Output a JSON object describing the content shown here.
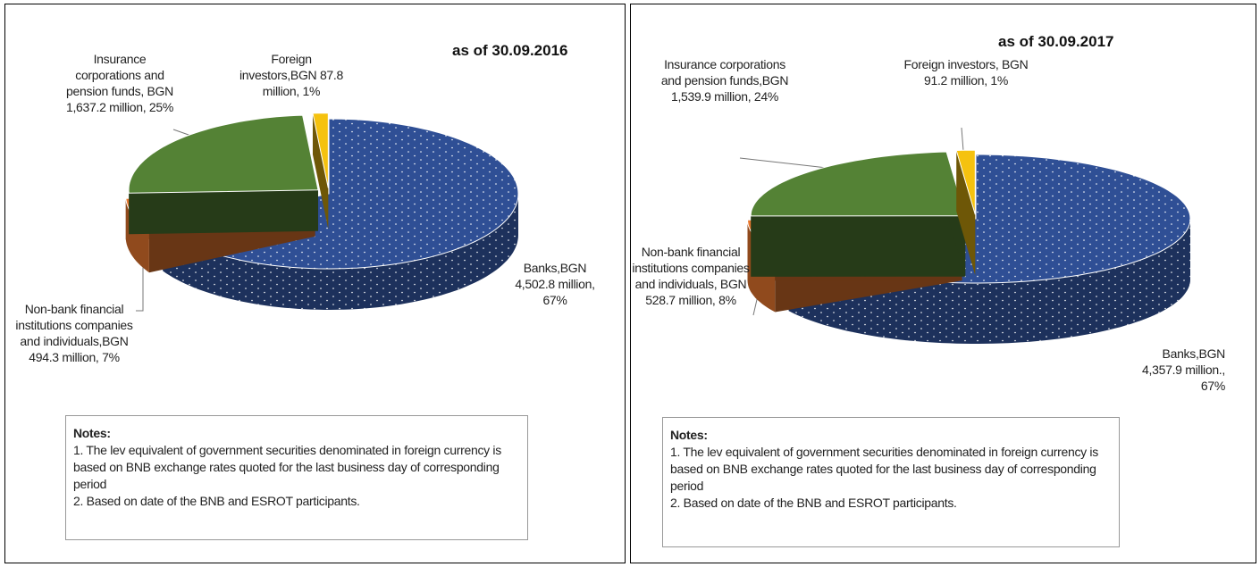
{
  "chart_data": [
    {
      "type": "pie",
      "title": "as of 30.09.2016",
      "values": [
        4502.8,
        494.3,
        1637.2,
        87.8
      ],
      "value_labels": [
        "Banks,BGN 4,502.8 million, 67%",
        "Non-bank financial institutions companies and individuals,BGN 494.3 million, 7%",
        "Insurance corporations and pension funds, BGN 1,637.2 million, 25%",
        "Foreign investors,BGN 87.8 million, 1%"
      ],
      "colors": [
        "#2f4f95",
        "#e8772e",
        "#548235",
        "#f5c20f"
      ],
      "notes": {
        "title": "Notes:",
        "items": [
          "1. The lev equivalent of government securities denominated in foreign currency is based on BNB exchange rates quoted for the last business day of corresponding period",
          "2. Based on date of the BNB and ESROT participants."
        ]
      }
    },
    {
      "type": "pie",
      "title": "as of 30.09.2017",
      "values": [
        4357.9,
        528.7,
        1539.9,
        91.2
      ],
      "value_labels": [
        "Banks,BGN 4,357.9 million., 67%",
        "Non-bank financial institutions companies and individuals, BGN 528.7 million, 8%",
        "Insurance corporations and pension funds,BGN 1,539.9 million, 24%",
        "Foreign investors, BGN 91.2 million, 1%"
      ],
      "colors": [
        "#2f4f95",
        "#e8772e",
        "#548235",
        "#f5c20f"
      ],
      "notes": {
        "title": "Notes:",
        "items": [
          "1. The lev equivalent of government securities denominated in foreign currency is based on BNB exchange rates quoted for the last business day of corresponding period",
          "2. Based on date of the BNB and ESROT participants."
        ]
      }
    }
  ]
}
